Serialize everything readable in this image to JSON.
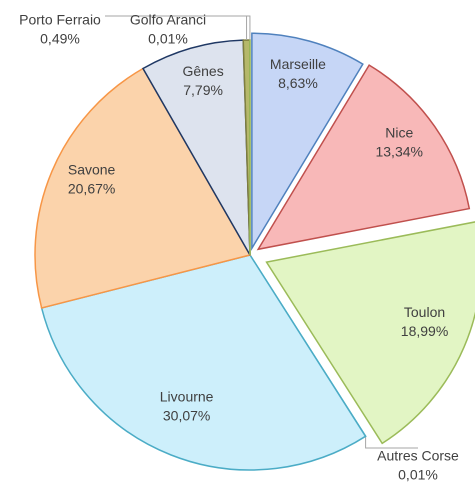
{
  "chart_data": {
    "type": "pie",
    "categories": [
      "Marseille",
      "Nice",
      "Toulon",
      "Autres Corse",
      "Livourne",
      "Savone",
      "Gênes",
      "Porto Ferraio",
      "Golfo Aranci"
    ],
    "values": [
      8.63,
      13.34,
      18.99,
      0.01,
      30.07,
      20.67,
      7.79,
      0.49,
      0.01
    ],
    "value_labels": [
      "8,63%",
      "13,34%",
      "18,99%",
      "0,01%",
      "30,07%",
      "20,67%",
      "7,79%",
      "0,49%",
      "0,01%"
    ],
    "colors": [
      "#c6d6f6",
      "#f8b8b8",
      "#e2f5c4",
      "#4bacc6",
      "#cdeffb",
      "#fbd3ab",
      "#dde3ee",
      "#b5b86a",
      "#9bbb59"
    ]
  }
}
